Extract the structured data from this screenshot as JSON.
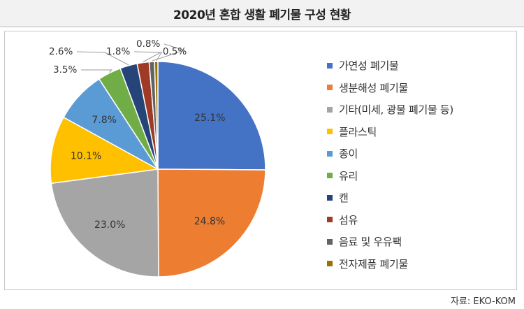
{
  "header": {
    "title": "2020년 혼합 생활 폐기물 구성 현황"
  },
  "source": "자료: EKO-KOM",
  "chart_data": {
    "type": "pie",
    "title": "2020년 혼합 생활 폐기물 구성 현황",
    "legend_position": "right",
    "slices": [
      {
        "label": "가연성 폐기물",
        "value": 25.1,
        "display": "25.1%",
        "color": "#4472c4"
      },
      {
        "label": "생분해성 폐기물",
        "value": 24.8,
        "display": "24.8%",
        "color": "#ed7d31"
      },
      {
        "label": "기타(미세, 광물 폐기물 등)",
        "value": 23.0,
        "display": "23.0%",
        "color": "#a5a5a5"
      },
      {
        "label": "플라스틱",
        "value": 10.1,
        "display": "10.1%",
        "color": "#ffc000"
      },
      {
        "label": "종이",
        "value": 7.8,
        "display": "7.8%",
        "color": "#5b9bd5"
      },
      {
        "label": "유리",
        "value": 3.5,
        "display": "3.5%",
        "color": "#70ad47"
      },
      {
        "label": "캔",
        "value": 2.6,
        "display": "2.6%",
        "color": "#264478"
      },
      {
        "label": "섬유",
        "value": 1.8,
        "display": "1.8%",
        "color": "#9e3a26"
      },
      {
        "label": "음료 및 우유팩",
        "value": 0.8,
        "display": "0.8%",
        "color": "#636363"
      },
      {
        "label": "전자제품 폐기물",
        "value": 0.5,
        "display": "0.5%",
        "color": "#997300"
      }
    ]
  }
}
